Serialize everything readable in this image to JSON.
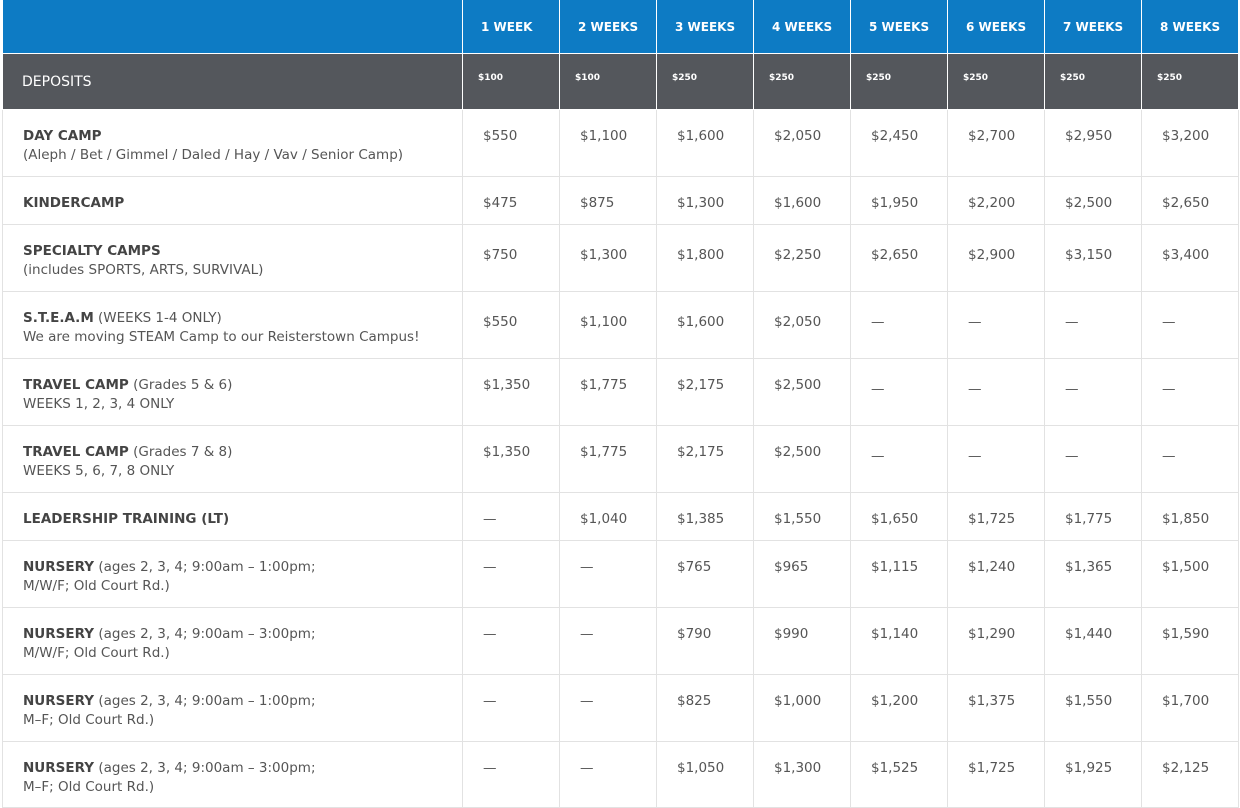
{
  "header": {
    "weeks": [
      "1 WEEK",
      "2 WEEKS",
      "3 WEEKS",
      "4 WEEKS",
      "5 WEEKS",
      "6 WEEKS",
      "7 WEEKS",
      "8 WEEKS"
    ]
  },
  "deposits": {
    "label": "DEPOSITS",
    "values": [
      "$100",
      "$100",
      "$250",
      "$250",
      "$250",
      "$250",
      "$250",
      "$250"
    ]
  },
  "rows": [
    {
      "name_bold": "DAY CAMP",
      "name_rest": "",
      "name_line2": "(Aleph / Bet / Gimmel / Daled / Hay / Vav / Senior Camp)",
      "prices": [
        "$550",
        "$1,100",
        "$1,600",
        "$2,050",
        "$2,450",
        "$2,700",
        "$2,950",
        "$3,200"
      ]
    },
    {
      "name_bold": "KINDERCAMP",
      "name_rest": "",
      "name_line2": "",
      "prices": [
        "$475",
        "$875",
        "$1,300",
        "$1,600",
        "$1,950",
        "$2,200",
        "$2,500",
        "$2,650"
      ]
    },
    {
      "name_bold": "SPECIALTY CAMPS",
      "name_rest": "",
      "name_line2": "(includes SPORTS, ARTS, SURVIVAL)",
      "prices": [
        "$750",
        "$1,300",
        "$1,800",
        "$2,250",
        "$2,650",
        "$2,900",
        "$3,150",
        "$3,400"
      ]
    },
    {
      "name_bold": "S.T.E.A.M",
      "name_rest": " (WEEKS 1-4 ONLY)",
      "name_line2": "We are moving STEAM Camp to our Reisterstown Campus!",
      "prices": [
        "$550",
        "$1,100",
        "$1,600",
        "$2,050",
        "—",
        "—",
        "—",
        "—"
      ]
    },
    {
      "name_bold": "TRAVEL CAMP",
      "name_rest": " (Grades 5 & 6)",
      "name_line2": "WEEKS 1, 2, 3, 4 ONLY",
      "prices": [
        "$1,350",
        "$1,775",
        "$2,175",
        "$2,500",
        "—",
        "—",
        "—",
        "—"
      ]
    },
    {
      "name_bold": "TRAVEL CAMP",
      "name_rest": " (Grades 7 & 8)",
      "name_line2": "WEEKS 5, 6, 7, 8 ONLY",
      "prices": [
        "$1,350",
        "$1,775",
        "$2,175",
        "$2,500",
        "—",
        "—",
        "—",
        "—"
      ]
    },
    {
      "name_bold": "LEADERSHIP TRAINING (LT)",
      "name_rest": "",
      "name_line2": "",
      "prices": [
        "—",
        "$1,040",
        "$1,385",
        "$1,550",
        "$1,650",
        "$1,725",
        "$1,775",
        "$1,850"
      ]
    },
    {
      "name_bold": "NURSERY",
      "name_rest": " (ages 2, 3, 4; 9:00am – 1:00pm;",
      "name_line2": "M/W/F; Old Court Rd.)",
      "prices": [
        "—",
        "—",
        "$765",
        "$965",
        "$1,115",
        "$1,240",
        "$1,365",
        "$1,500"
      ]
    },
    {
      "name_bold": "NURSERY",
      "name_rest": " (ages 2, 3, 4; 9:00am – 3:00pm;",
      "name_line2": "M/W/F; Old Court Rd.)",
      "prices": [
        "—",
        "—",
        "$790",
        "$990",
        "$1,140",
        "$1,290",
        "$1,440",
        "$1,590"
      ]
    },
    {
      "name_bold": "NURSERY",
      "name_rest": " (ages 2, 3, 4; 9:00am – 1:00pm;",
      "name_line2": "M–F; Old Court Rd.)",
      "prices": [
        "—",
        "—",
        "$825",
        "$1,000",
        "$1,200",
        "$1,375",
        "$1,550",
        "$1,700"
      ]
    },
    {
      "name_bold": "NURSERY",
      "name_rest": " (ages 2, 3, 4; 9:00am – 3:00pm;",
      "name_line2": "M–F; Old Court Rd.)",
      "prices": [
        "—",
        "—",
        "$1,050",
        "$1,300",
        "$1,525",
        "$1,725",
        "$1,925",
        "$2,125"
      ]
    }
  ]
}
